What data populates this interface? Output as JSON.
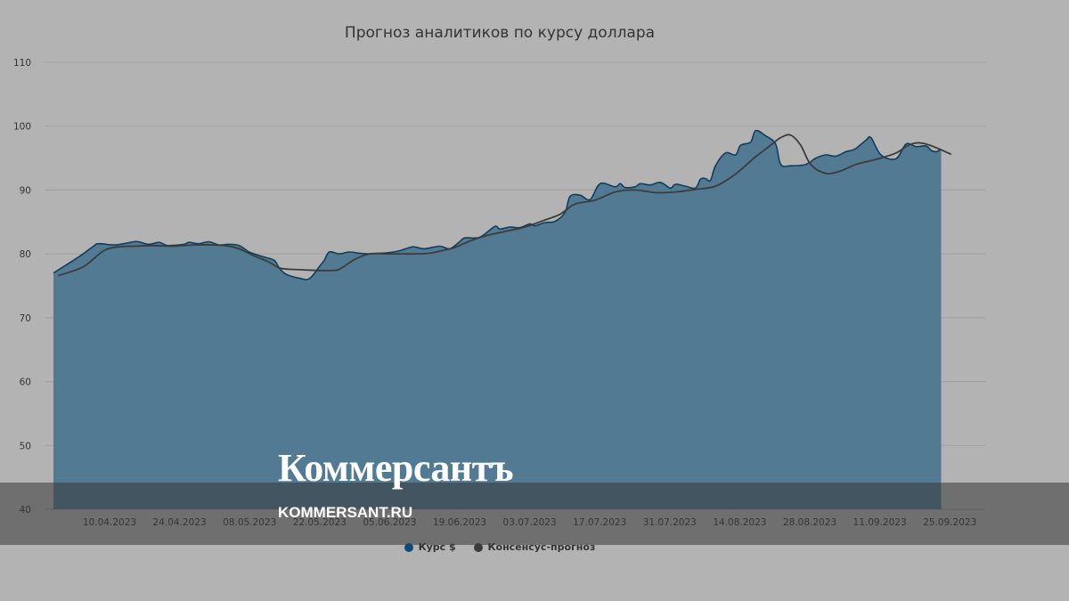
{
  "chart_data": {
    "type": "area",
    "title": "Прогноз аналитиков по курсу доллара",
    "ylim": [
      40,
      110
    ],
    "y_ticks": [
      "40",
      "50",
      "60",
      "70",
      "80",
      "90",
      "100",
      "110"
    ],
    "x_tick_labels": [
      "10.04.2023",
      "24.04.2023",
      "08.05.2023",
      "22.05.2023",
      "05.06.2023",
      "19.06.2023",
      "03.07.2023",
      "17.07.2023",
      "31.07.2023",
      "14.08.2023",
      "28.08.2023",
      "11.09.2023",
      "25.09.2023"
    ],
    "grid": true,
    "legend_position": "bottom",
    "series": [
      {
        "name": "Курс $",
        "type": "area",
        "color": "#527a93",
        "x": [
          0,
          5,
          8,
          9,
          12,
          14,
          16,
          17,
          19,
          21,
          22,
          23,
          26,
          27,
          29,
          31,
          33,
          35,
          37,
          39,
          40,
          42,
          44,
          45,
          46,
          47,
          49,
          51,
          53,
          54,
          55,
          57,
          59,
          61,
          63,
          65,
          67,
          69,
          71,
          72,
          74,
          77,
          79,
          81,
          82,
          85,
          88,
          89,
          91,
          93,
          95,
          96,
          98,
          100,
          102,
          103,
          105,
          107,
          109,
          112,
          113,
          114,
          116,
          117,
          119,
          121,
          123,
          124,
          126,
          128,
          129,
          130,
          131,
          132,
          134,
          136,
          137,
          139,
          140,
          142,
          144,
          145,
          147,
          150,
          152,
          154,
          156,
          158,
          159,
          160,
          162,
          163,
          165,
          168,
          170,
          172,
          174,
          175,
          176,
          177
        ],
        "y": [
          77,
          79.5,
          81.2,
          81.6,
          81.4,
          81.6,
          81.9,
          81.9,
          81.5,
          81.8,
          81.5,
          81.3,
          81.5,
          81.8,
          81.6,
          81.9,
          81.4,
          81.5,
          81.3,
          80.3,
          80,
          79.5,
          79,
          77.8,
          77,
          76.6,
          76.2,
          76.1,
          78,
          79,
          80.3,
          80,
          80.3,
          80.1,
          80,
          80.1,
          80.2,
          80.5,
          81,
          81.1,
          80.8,
          81.2,
          80.8,
          81.9,
          82.5,
          82.6,
          84.3,
          83.9,
          84.2,
          84.1,
          84.7,
          84.4,
          84.9,
          85.1,
          86.5,
          89,
          89.2,
          88.5,
          91,
          90.5,
          91,
          90.4,
          90.5,
          91,
          90.8,
          91.2,
          90.3,
          90.9,
          90.6,
          90.3,
          91.7,
          91.8,
          91.5,
          93.8,
          95.8,
          95.5,
          97,
          97.5,
          99.3,
          98.5,
          97.2,
          94,
          93.8,
          94,
          95,
          95.5,
          95.3,
          96,
          96.2,
          96.5,
          97.8,
          98.2,
          95.5,
          94.9,
          97.2,
          96.8,
          96.9,
          96.2,
          96,
          96.4
        ]
      },
      {
        "name": "Консенсус-прогноз",
        "type": "line",
        "color": "#3c3c3c",
        "x": [
          1,
          6,
          10,
          13,
          16,
          20,
          24,
          28,
          32,
          35,
          37,
          40,
          43,
          45,
          47,
          50,
          53,
          55,
          57,
          60,
          63,
          66,
          69,
          72,
          75,
          78,
          80,
          83,
          86,
          90,
          94,
          98,
          101,
          104,
          108,
          112,
          116,
          120,
          124,
          128,
          132,
          136,
          140,
          143,
          145,
          147,
          149,
          151,
          154,
          157,
          160,
          164,
          168,
          171,
          174,
          179
        ],
        "y": [
          76.6,
          78,
          80.5,
          81.1,
          81.2,
          81.3,
          81.2,
          81.4,
          81.4,
          81.2,
          80.8,
          79.7,
          78.7,
          77.8,
          77.6,
          77.5,
          77.4,
          77.4,
          77.6,
          79.1,
          80,
          80,
          80,
          80,
          80.1,
          80.6,
          81,
          82,
          82.8,
          83.5,
          84.2,
          85.3,
          86.2,
          87.8,
          88.4,
          89.7,
          90,
          89.6,
          89.7,
          90.1,
          90.6,
          92.5,
          95.2,
          97,
          98.2,
          98.6,
          97,
          94,
          92.6,
          93,
          94,
          94.8,
          95.8,
          97.2,
          97.2,
          95.6
        ]
      }
    ]
  },
  "watermark": {
    "brand": "Коммерсантъ",
    "site": "KOMMERSANT.RU"
  }
}
